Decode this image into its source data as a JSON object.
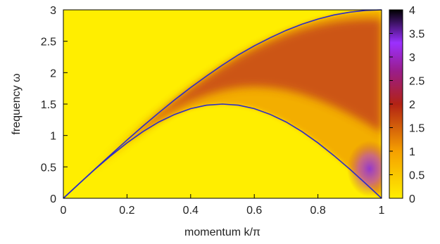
{
  "chart_data": {
    "type": "heatmap",
    "xlabel": "momentum k/π",
    "ylabel": "frequency ω",
    "xlim": [
      0,
      1
    ],
    "ylim": [
      0,
      3
    ],
    "x_ticks": [
      "0",
      "0.2",
      "0.4",
      "0.6",
      "0.8",
      "1"
    ],
    "y_ticks": [
      "0",
      "0.5",
      "1",
      "1.5",
      "2",
      "2.5",
      "3"
    ],
    "colorbar": {
      "range": [
        0,
        4
      ],
      "ticks": [
        "0",
        "0.5",
        "1",
        "1.5",
        "2",
        "2.5",
        "3",
        "3.5",
        "4"
      ],
      "stops": [
        {
          "value": 0,
          "color": "#ffee00"
        },
        {
          "value": 1,
          "color": "#f5a000"
        },
        {
          "value": 2,
          "color": "#b22214"
        },
        {
          "value": 2.7,
          "color": "#9a1d8a"
        },
        {
          "value": 3.3,
          "color": "#9b30ff"
        },
        {
          "value": 4,
          "color": "#000000"
        }
      ]
    },
    "series": [
      {
        "name": "",
        "type": "line",
        "color": "#2b2bc8",
        "x": [
          0,
          0.05,
          0.1,
          0.15,
          0.2,
          0.25,
          0.3,
          0.35,
          0.4,
          0.45,
          0.5,
          0.55,
          0.6,
          0.65,
          0.7,
          0.75,
          0.8,
          0.85,
          0.9,
          0.95,
          1
        ],
        "y": [
          0,
          0.235,
          0.469,
          0.699,
          0.927,
          1.149,
          1.362,
          1.568,
          1.763,
          1.947,
          2.121,
          2.284,
          2.427,
          2.556,
          2.673,
          2.772,
          2.853,
          2.918,
          2.963,
          2.991,
          3
        ]
      },
      {
        "name": "",
        "type": "line",
        "color": "#2b2bc8",
        "x": [
          0,
          0.05,
          0.1,
          0.15,
          0.2,
          0.25,
          0.3,
          0.35,
          0.4,
          0.45,
          0.5,
          0.55,
          0.6,
          0.65,
          0.7,
          0.75,
          0.8,
          0.85,
          0.9,
          0.95,
          1
        ],
        "y": [
          0,
          0.235,
          0.464,
          0.681,
          0.882,
          1.061,
          1.214,
          1.336,
          1.427,
          1.482,
          1.5,
          1.482,
          1.427,
          1.336,
          1.214,
          1.061,
          0.882,
          0.681,
          0.464,
          0.235,
          0
        ]
      }
    ]
  }
}
